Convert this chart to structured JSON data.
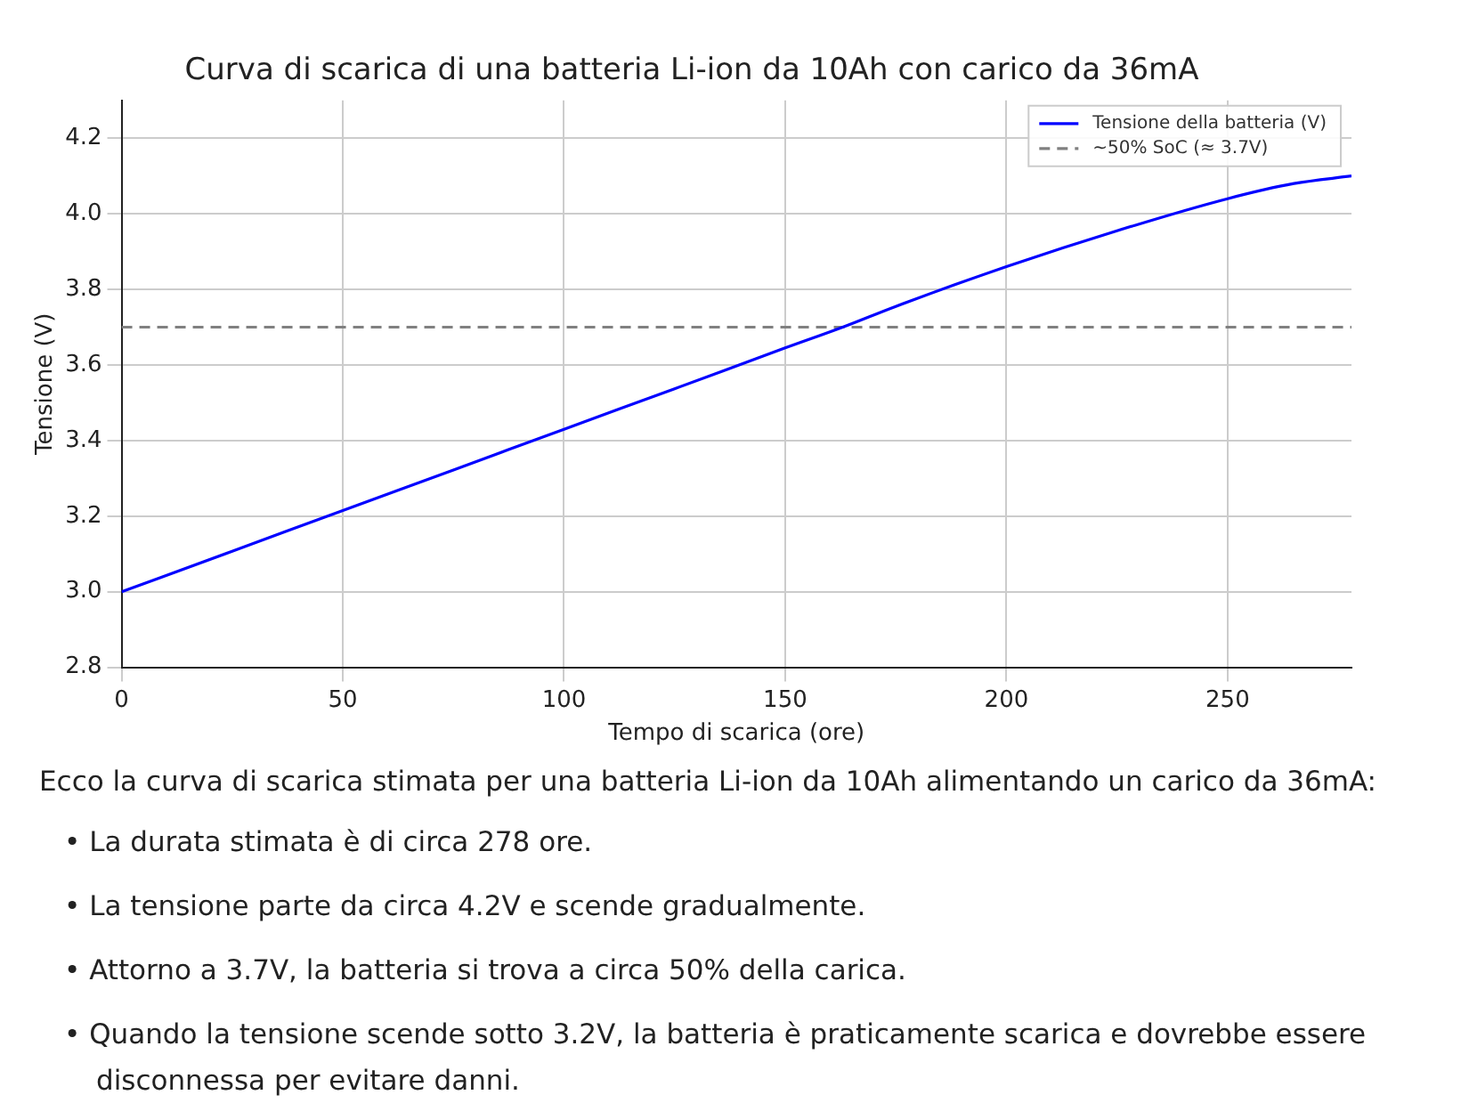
{
  "chart_data": {
    "type": "line",
    "title": "Curva di scarica di una batteria Li-ion da 10Ah con carico da 36mA",
    "xlabel": "Tempo di scarica (ore)",
    "ylabel": "Tensione (V)",
    "x": [
      0,
      25,
      50,
      75,
      100,
      125,
      150,
      163,
      175,
      200,
      225,
      250,
      265,
      278
    ],
    "series": [
      {
        "name": "Tensione della batteria (V)",
        "color": "#0000ff",
        "values": [
          3.0,
          3.107,
          3.215,
          3.322,
          3.43,
          3.537,
          3.645,
          3.7,
          3.755,
          3.86,
          3.955,
          4.04,
          4.08,
          4.1
        ]
      }
    ],
    "ref_lines": [
      {
        "axis": "y",
        "value": 3.7,
        "label": "~50% SoC (≈ 3.7V)",
        "color": "#808080",
        "line_style": "dashed"
      }
    ],
    "xlim": [
      0,
      278
    ],
    "ylim": [
      2.8,
      4.3
    ],
    "xticks": [
      0,
      50,
      100,
      150,
      200,
      250
    ],
    "yticks": [
      {
        "value": 2.8,
        "label": "2.8"
      },
      {
        "value": 3.0,
        "label": "3.0"
      },
      {
        "value": 3.2,
        "label": "3.2"
      },
      {
        "value": 3.4,
        "label": "3.4"
      },
      {
        "value": 3.6,
        "label": "3.6"
      },
      {
        "value": 3.8,
        "label": "3.8"
      },
      {
        "value": 4.0,
        "label": "4.0"
      },
      {
        "value": 4.2,
        "label": "4.2"
      }
    ],
    "grid": true,
    "legend": "top right",
    "marker": "none",
    "line_style": "solid",
    "annotations": [
      "Ecco la curva di scarica stimata per una batteria Li-ion da 10Ah alimentando un carico da 36mA:",
      "• La durata stimata è di circa 278 ore.",
      "• La tensione parte da circa 4.2V e scende gradualmente.",
      "• Attorno a 3.7V, la batteria si trova a circa 50% della carica.",
      "• Quando la tensione scende sotto 3.2V, la batteria è praticamente scarica e dovrebbe essere disconnessa per evitare danni."
    ]
  }
}
